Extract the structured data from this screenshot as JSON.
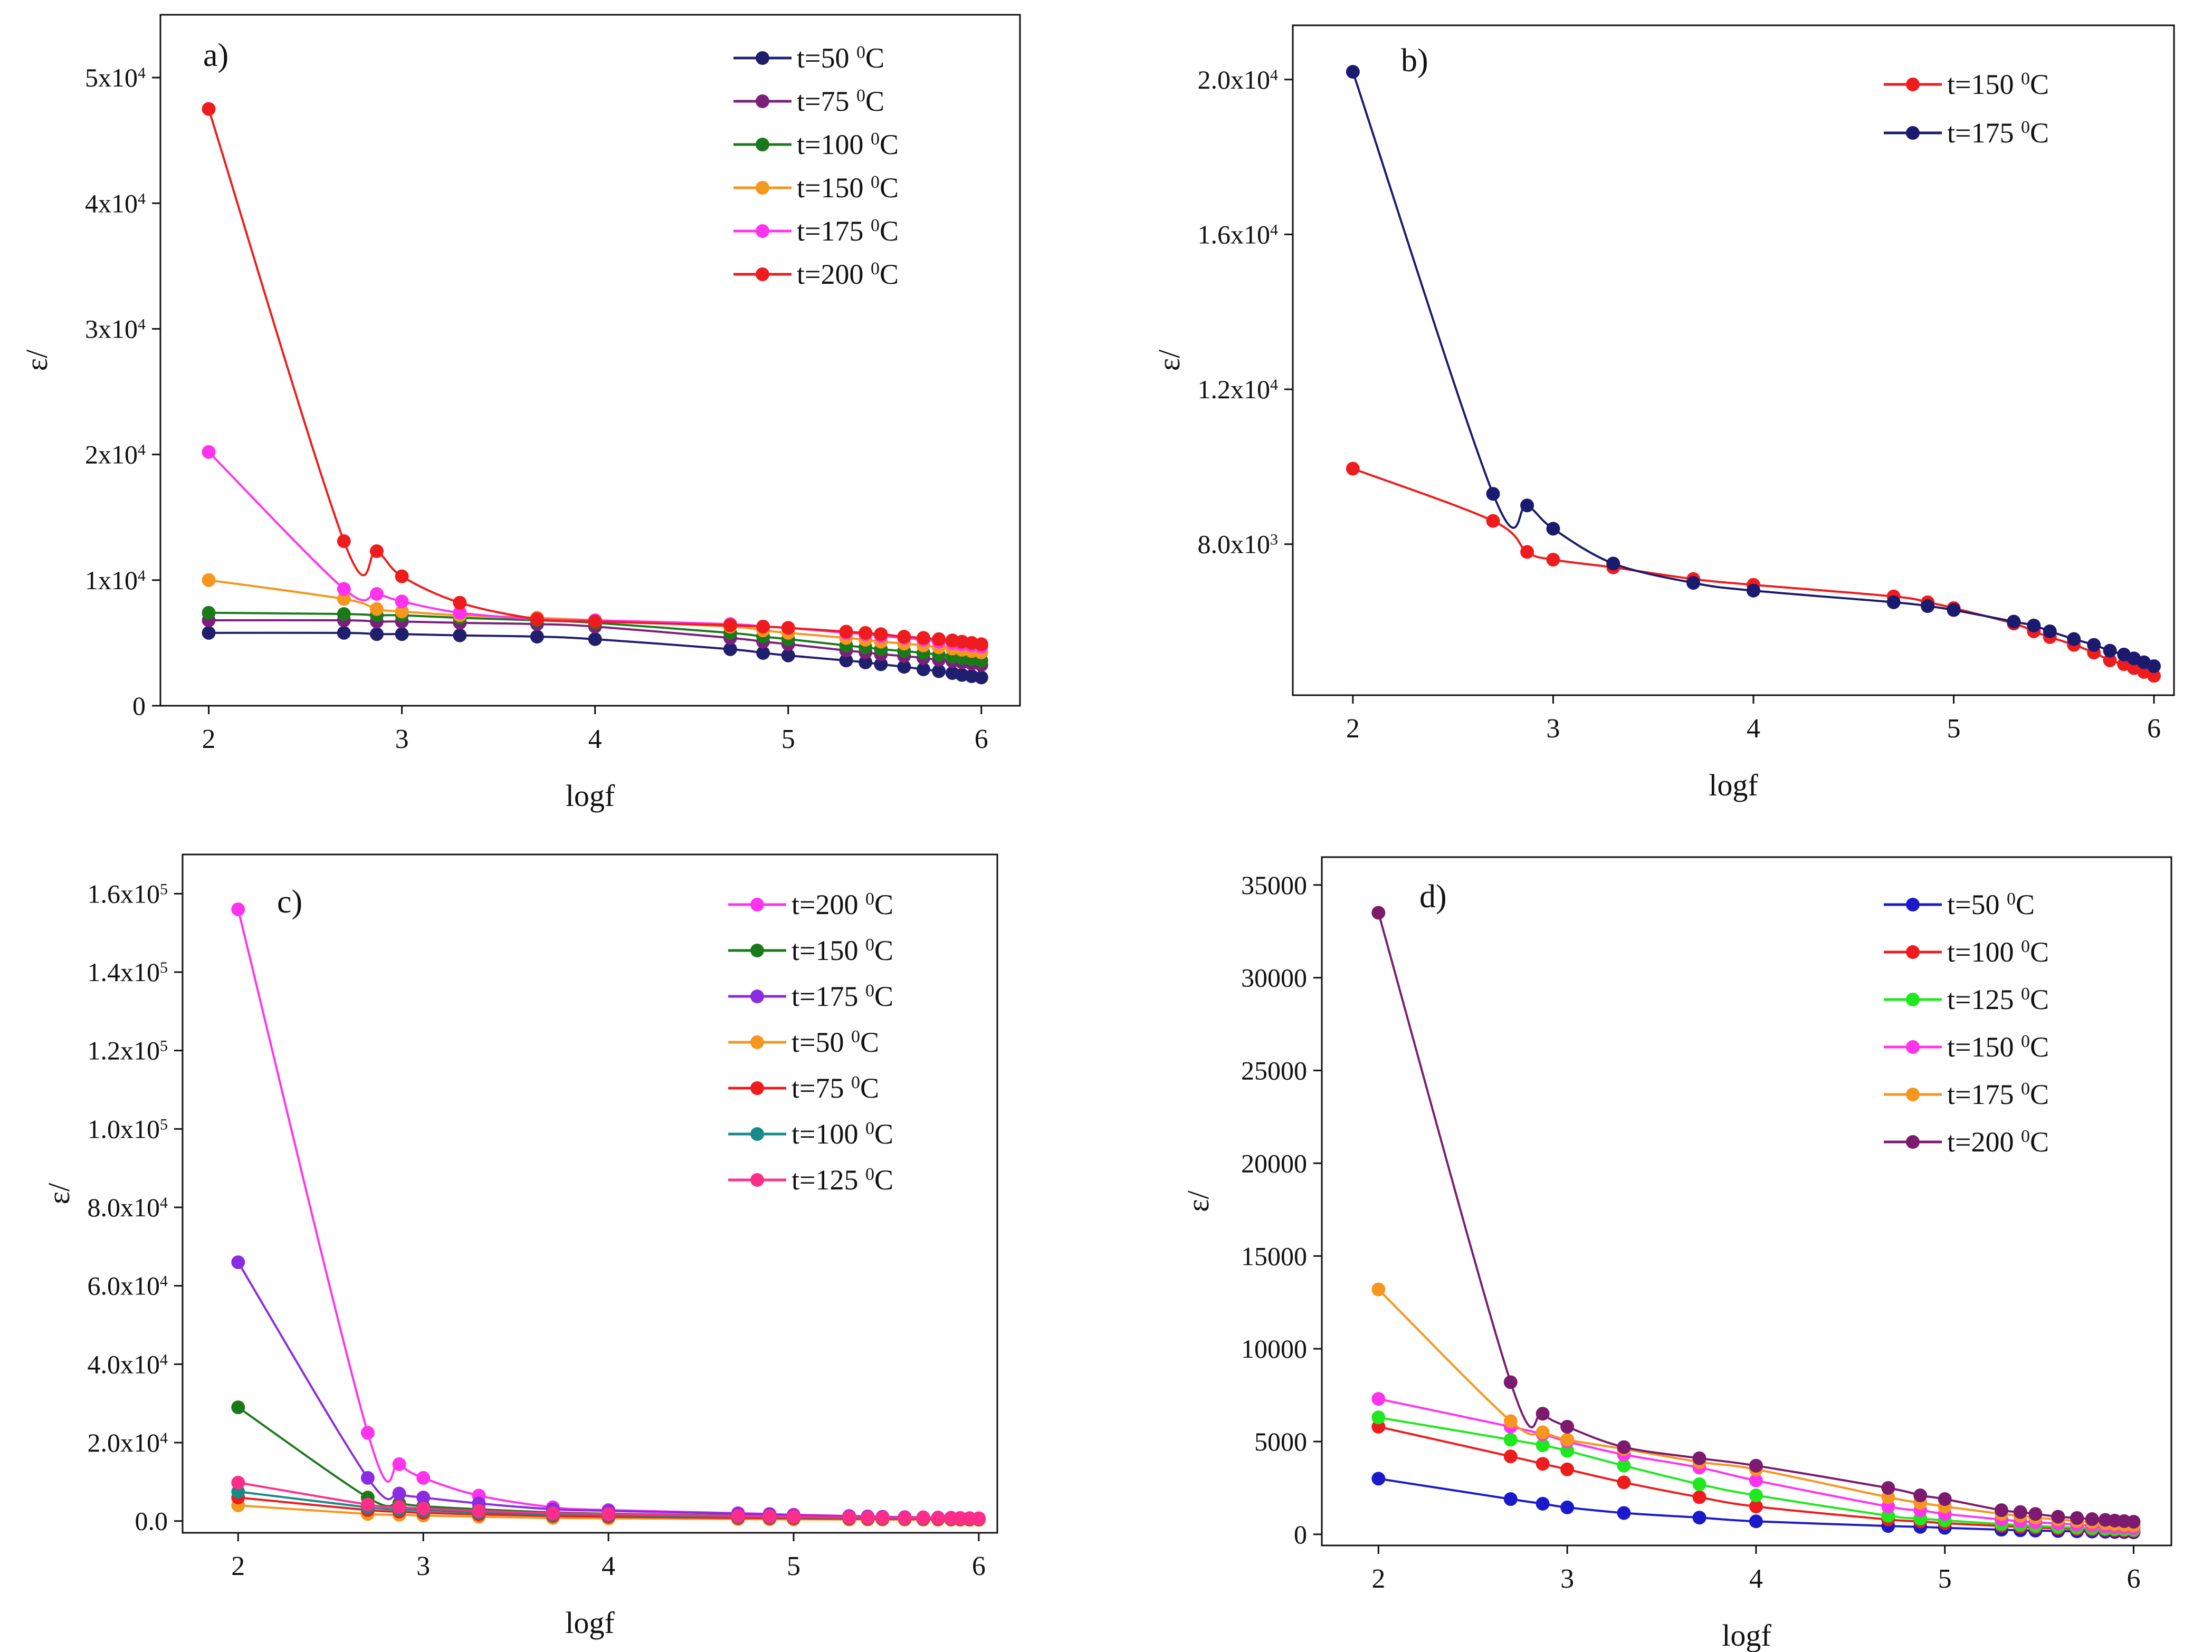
{
  "figure": {
    "description_visible": false,
    "panels_count": 4
  },
  "chart_data": [
    {
      "id": "a",
      "type": "line",
      "panel_label": "a)",
      "xlabel": "logf",
      "ylabel": "ε/",
      "xlim": [
        1.75,
        6.2
      ],
      "ylim": [
        0,
        55000
      ],
      "x_ticks": [
        2,
        3,
        4,
        5,
        6
      ],
      "y_ticks": [
        0,
        10000,
        20000,
        30000,
        40000,
        50000
      ],
      "y_tick_labels": [
        "0",
        "1x10^4",
        "2x10^4",
        "3x10^4",
        "4x10^4",
        "5x10^4"
      ],
      "x": [
        2,
        2.7,
        2.87,
        3,
        3.3,
        3.7,
        4,
        4.7,
        4.87,
        5,
        5.3,
        5.4,
        5.48,
        5.6,
        5.7,
        5.78,
        5.85,
        5.9,
        5.95,
        6
      ],
      "legend_position": "top-right",
      "series": [
        {
          "name": "t=50 0C",
          "label": "t=50",
          "unit": "0C",
          "color": "#1f1f6e",
          "values": [
            5800,
            5800,
            5700,
            5700,
            5600,
            5500,
            5300,
            4500,
            4200,
            4000,
            3600,
            3450,
            3300,
            3100,
            2900,
            2750,
            2600,
            2450,
            2350,
            2250
          ]
        },
        {
          "name": "t=75 0C",
          "label": "t=75",
          "unit": "0C",
          "color": "#7b1f7b",
          "values": [
            6800,
            6800,
            6700,
            6700,
            6600,
            6500,
            6300,
            5400,
            5100,
            4900,
            4400,
            4250,
            4100,
            3950,
            3800,
            3650,
            3550,
            3450,
            3350,
            3250
          ]
        },
        {
          "name": "t=100 0C",
          "label": "t=100",
          "unit": "0C",
          "color": "#1a7a1a",
          "values": [
            7400,
            7300,
            7200,
            7200,
            7000,
            6800,
            6600,
            5800,
            5500,
            5300,
            4800,
            4650,
            4500,
            4350,
            4200,
            4050,
            3900,
            3800,
            3700,
            3600
          ]
        },
        {
          "name": "t=150 0C",
          "label": "t=150",
          "unit": "0C",
          "color": "#f5961e",
          "values": [
            10000,
            8500,
            7700,
            7500,
            7200,
            7000,
            6800,
            6300,
            6000,
            5800,
            5400,
            5250,
            5100,
            4950,
            4800,
            4650,
            4550,
            4450,
            4350,
            4250
          ]
        },
        {
          "name": "t=175 0C",
          "label": "t=175",
          "unit": "0C",
          "color": "#ff33ee",
          "values": [
            20200,
            9300,
            8900,
            8300,
            7400,
            6900,
            6800,
            6500,
            6300,
            6200,
            5800,
            5700,
            5550,
            5400,
            5250,
            5100,
            5000,
            4900,
            4800,
            4700
          ]
        },
        {
          "name": "t=200 0C",
          "label": "t=200",
          "unit": "0C",
          "color": "#ee1c1c",
          "values": [
            47500,
            13100,
            12300,
            10300,
            8200,
            6900,
            6700,
            6400,
            6300,
            6200,
            5900,
            5800,
            5700,
            5500,
            5400,
            5300,
            5200,
            5100,
            5000,
            4900
          ]
        }
      ]
    },
    {
      "id": "b",
      "type": "line",
      "panel_label": "b)",
      "xlabel": "logf",
      "ylabel": "ε/",
      "xlim": [
        1.7,
        6.1
      ],
      "ylim": [
        4100,
        21400
      ],
      "x_ticks": [
        2,
        3,
        4,
        5,
        6
      ],
      "y_ticks": [
        8000,
        12000,
        16000,
        20000
      ],
      "y_tick_labels": [
        "8.0x10^3",
        "1.2x10^4",
        "1.6x10^4",
        "2.0x10^4"
      ],
      "x": [
        2,
        2.7,
        2.87,
        3,
        3.3,
        3.7,
        4,
        4.7,
        4.87,
        5,
        5.3,
        5.4,
        5.48,
        5.6,
        5.7,
        5.78,
        5.85,
        5.9,
        5.95,
        6
      ],
      "legend_position": "top-right",
      "series": [
        {
          "name": "t=150 0C",
          "label": "t=150",
          "unit": "0C",
          "color": "#ee1c1c",
          "values": [
            9950,
            8600,
            7800,
            7600,
            7400,
            7100,
            6950,
            6650,
            6500,
            6350,
            5950,
            5750,
            5600,
            5400,
            5200,
            5000,
            4900,
            4800,
            4700,
            4600
          ]
        },
        {
          "name": "t=175 0C",
          "label": "t=175",
          "unit": "0C",
          "color": "#1a1a6e",
          "values": [
            20200,
            9300,
            9000,
            8400,
            7500,
            7000,
            6800,
            6500,
            6400,
            6300,
            6000,
            5900,
            5750,
            5550,
            5400,
            5250,
            5150,
            5050,
            4950,
            4850
          ]
        }
      ]
    },
    {
      "id": "c",
      "type": "line",
      "panel_label": "c)",
      "xlabel": "logf",
      "ylabel": "ε/",
      "xlim": [
        1.7,
        6.1
      ],
      "ylim": [
        -3000,
        170000
      ],
      "x_ticks": [
        2,
        3,
        4,
        5,
        6
      ],
      "y_ticks": [
        0,
        20000,
        40000,
        60000,
        80000,
        100000,
        120000,
        140000,
        160000
      ],
      "y_tick_labels": [
        "0.0",
        "2.0x10^4",
        "4.0x10^4",
        "6.0x10^4",
        "8.0x10^4",
        "1.0x10^5",
        "1.2x10^5",
        "1.4x10^5",
        "1.6x10^5"
      ],
      "x": [
        2,
        2.7,
        2.87,
        3,
        3.3,
        3.7,
        4,
        4.7,
        4.87,
        5,
        5.3,
        5.4,
        5.48,
        5.6,
        5.7,
        5.78,
        5.85,
        5.9,
        5.95,
        6
      ],
      "legend_position": "top-right",
      "series": [
        {
          "name": "t=200 0C",
          "label": "t=200",
          "unit": "0C",
          "color": "#ff33ee",
          "values": [
            156000,
            22500,
            14500,
            11000,
            6500,
            3500,
            2800,
            2000,
            1800,
            1600,
            1300,
            1200,
            1100,
            1000,
            950,
            900,
            850,
            800,
            750,
            700
          ]
        },
        {
          "name": "t=150 0C",
          "label": "t=150",
          "unit": "0C",
          "color": "#1a7a1a",
          "values": [
            29000,
            6000,
            4500,
            3800,
            3000,
            2200,
            1900,
            1400,
            1300,
            1200,
            1000,
            950,
            900,
            850,
            800,
            750,
            700,
            650,
            620,
            600
          ]
        },
        {
          "name": "t=175 0C",
          "label": "t=175",
          "unit": "0C",
          "color": "#8b2be2",
          "values": [
            66000,
            11000,
            7000,
            6000,
            4500,
            3000,
            2600,
            1900,
            1700,
            1500,
            1200,
            1100,
            1050,
            950,
            900,
            850,
            800,
            750,
            700,
            650
          ]
        },
        {
          "name": "t=50 0C",
          "label": "t=50",
          "unit": "0C",
          "color": "#f5961e",
          "values": [
            4000,
            1800,
            1600,
            1400,
            1100,
            800,
            700,
            500,
            450,
            420,
            380,
            360,
            350,
            340,
            330,
            320,
            310,
            300,
            290,
            280
          ]
        },
        {
          "name": "t=75 0C",
          "label": "t=75",
          "unit": "0C",
          "color": "#ee1c1c",
          "values": [
            6000,
            2800,
            2400,
            2100,
            1700,
            1300,
            1100,
            800,
            750,
            700,
            620,
            600,
            580,
            560,
            540,
            520,
            500,
            480,
            470,
            460
          ]
        },
        {
          "name": "t=100 0C",
          "label": "t=100",
          "unit": "0C",
          "color": "#178a8a",
          "values": [
            7500,
            3500,
            3000,
            2700,
            2200,
            1700,
            1500,
            1100,
            1000,
            950,
            850,
            800,
            780,
            750,
            720,
            700,
            680,
            660,
            640,
            620
          ]
        },
        {
          "name": "t=125 0C",
          "label": "t=125",
          "unit": "0C",
          "color": "#ff2d8a",
          "values": [
            9800,
            4200,
            3600,
            3200,
            2600,
            2000,
            1800,
            1300,
            1200,
            1100,
            950,
            900,
            870,
            840,
            810,
            780,
            760,
            740,
            720,
            700
          ]
        }
      ]
    },
    {
      "id": "d",
      "type": "line",
      "panel_label": "d)",
      "xlabel": "logf",
      "ylabel": "ε/",
      "xlim": [
        1.7,
        6.2
      ],
      "ylim": [
        -600,
        36500
      ],
      "x_ticks": [
        2,
        3,
        4,
        5,
        6
      ],
      "y_ticks": [
        0,
        5000,
        10000,
        15000,
        20000,
        25000,
        30000,
        35000
      ],
      "y_tick_labels": [
        "0",
        "5000",
        "10000",
        "15000",
        "20000",
        "25000",
        "30000",
        "35000"
      ],
      "x": [
        2,
        2.7,
        2.87,
        3,
        3.3,
        3.7,
        4,
        4.7,
        4.87,
        5,
        5.3,
        5.4,
        5.48,
        5.6,
        5.7,
        5.78,
        5.85,
        5.9,
        5.95,
        6
      ],
      "legend_position": "top-right",
      "series": [
        {
          "name": "t=500C",
          "label": "t=50",
          "unit": "0C",
          "color": "#1a1acc",
          "values": [
            3000,
            1900,
            1650,
            1450,
            1150,
            900,
            700,
            450,
            400,
            350,
            250,
            220,
            200,
            180,
            160,
            150,
            140,
            130,
            120,
            110
          ]
        },
        {
          "name": "t=1000C",
          "label": "t=100",
          "unit": "0C",
          "color": "#ee1c1c",
          "values": [
            5800,
            4200,
            3800,
            3500,
            2800,
            2000,
            1500,
            800,
            700,
            600,
            450,
            400,
            360,
            320,
            290,
            260,
            240,
            220,
            200,
            180
          ]
        },
        {
          "name": "t=1250C",
          "label": "t=125",
          "unit": "0C",
          "color": "#1ee81e",
          "values": [
            6300,
            5100,
            4800,
            4500,
            3700,
            2700,
            2100,
            1000,
            850,
            750,
            550,
            500,
            450,
            400,
            360,
            330,
            300,
            280,
            260,
            240
          ]
        },
        {
          "name": "t=1500C",
          "label": "t=150",
          "unit": "0C",
          "color": "#ff33ee",
          "values": [
            7300,
            5800,
            5400,
            5000,
            4300,
            3600,
            2900,
            1500,
            1300,
            1100,
            800,
            700,
            650,
            580,
            520,
            470,
            430,
            400,
            370,
            340
          ]
        },
        {
          "name": "t=1750C",
          "label": "t=175",
          "unit": "0C",
          "color": "#f5961e",
          "values": [
            13200,
            6100,
            5500,
            5100,
            4600,
            3900,
            3500,
            2000,
            1700,
            1500,
            1100,
            1000,
            900,
            800,
            720,
            650,
            600,
            550,
            510,
            480
          ]
        },
        {
          "name": "t=2000C",
          "label": "t=200",
          "unit": "0C",
          "color": "#7b1a6e",
          "values": [
            33500,
            8200,
            6500,
            5800,
            4700,
            4100,
            3700,
            2500,
            2100,
            1900,
            1300,
            1200,
            1100,
            950,
            880,
            820,
            780,
            740,
            710,
            680
          ]
        }
      ]
    }
  ]
}
